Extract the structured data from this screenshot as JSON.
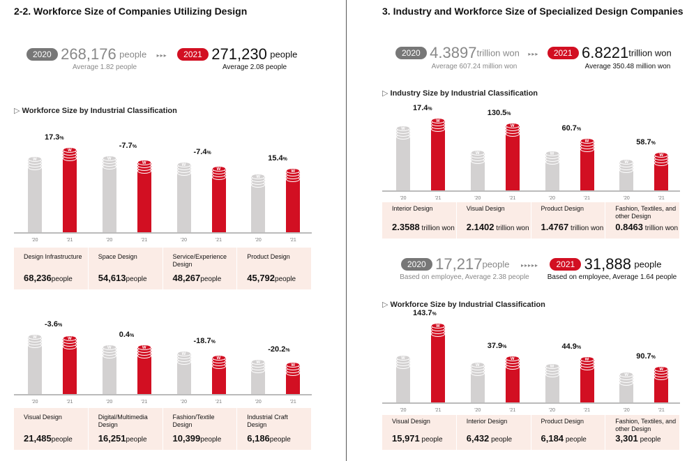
{
  "left": {
    "title": "2-2. Workforce Size of Companies Utilizing Design",
    "summary": {
      "y2020_label": "2020",
      "y2020_value": "268,176",
      "y2020_unit": "people",
      "y2020_avg": "Average 1.82 people",
      "y2021_label": "2021",
      "y2021_value": "271,230",
      "y2021_unit": "people",
      "y2021_avg": "Average 2.08 people",
      "arrows": "▸▸▸"
    },
    "section_label": "Workforce Size by Industrial Classification"
  },
  "right": {
    "title": "3. Industry and Workforce Size of Specialized Design Companies",
    "summary1": {
      "y2020_label": "2020",
      "y2020_value": "4.3897",
      "y2020_unit": "trillion won",
      "y2020_avg": "Average 607.24 million won",
      "y2021_label": "2021",
      "y2021_value": "6.8221",
      "y2021_unit": "trillion won",
      "y2021_avg": "Average 350.48 million won",
      "arrows": "▸▸▸"
    },
    "section1_label": "Industry Size by Industrial Classification",
    "summary2": {
      "y2020_label": "2020",
      "y2020_value": "17,217",
      "y2020_unit": "people",
      "y2020_avg": "Based on employee, Average 2.38 people",
      "y2021_label": "2021",
      "y2021_value": "31,888",
      "y2021_unit": "people",
      "y2021_avg": "Based on employee, Average 1.64 people",
      "arrows": "▸▸▸▸▸"
    },
    "section2_label": "Workforce Size by Industrial Classification"
  },
  "colors": {
    "y2020": "#d3d1d1",
    "y2021": "#d20f22",
    "label_bg": "#fbece6"
  },
  "chart_data": [
    {
      "type": "bar",
      "x_ticks": [
        "'20",
        "'21"
      ],
      "unit": "people",
      "categories": [
        "Design Infrastructure",
        "Space Design",
        "Service/Experience Design",
        "Product Design"
      ],
      "values_2021": [
        68236,
        54613,
        48267,
        45792
      ],
      "display": [
        "68,236",
        "54,613",
        "48,267",
        "45,792"
      ],
      "change_pct": [
        17.3,
        -7.7,
        -7.4,
        15.4
      ]
    },
    {
      "type": "bar",
      "x_ticks": [
        "'20",
        "'21"
      ],
      "unit": "people",
      "categories": [
        "Visual Design",
        "Digital/Multimedia Design",
        "Fashion/Textile Design",
        "Industrial Craft Design"
      ],
      "values_2021": [
        21485,
        16251,
        10399,
        6186
      ],
      "display": [
        "21,485",
        "16,251",
        "10,399",
        "6,186"
      ],
      "change_pct": [
        -3.6,
        0.4,
        -18.7,
        -20.2
      ]
    },
    {
      "type": "bar",
      "x_ticks": [
        "'20",
        "'21"
      ],
      "unit": "trillion won",
      "categories": [
        "Interior Design",
        "Visual Design",
        "Product Design",
        "Fashion, Textiles, and other Design"
      ],
      "values_2021": [
        2.3588,
        2.1402,
        1.4767,
        0.8463
      ],
      "display": [
        "2.3588",
        "2.1402",
        "1.4767",
        "0.8463"
      ],
      "change_pct": [
        17.4,
        130.5,
        60.7,
        58.7
      ]
    },
    {
      "type": "bar",
      "x_ticks": [
        "'20",
        "'21"
      ],
      "unit": "people",
      "categories": [
        "Visual Design",
        "Interior Design",
        "Product Design",
        "Fashion, Textiles, and other Design"
      ],
      "values_2021": [
        15971,
        6432,
        6184,
        3301
      ],
      "display": [
        "15,971",
        "6,432",
        "6,184",
        "3,301"
      ],
      "change_pct": [
        143.7,
        37.9,
        44.9,
        90.7
      ]
    }
  ]
}
